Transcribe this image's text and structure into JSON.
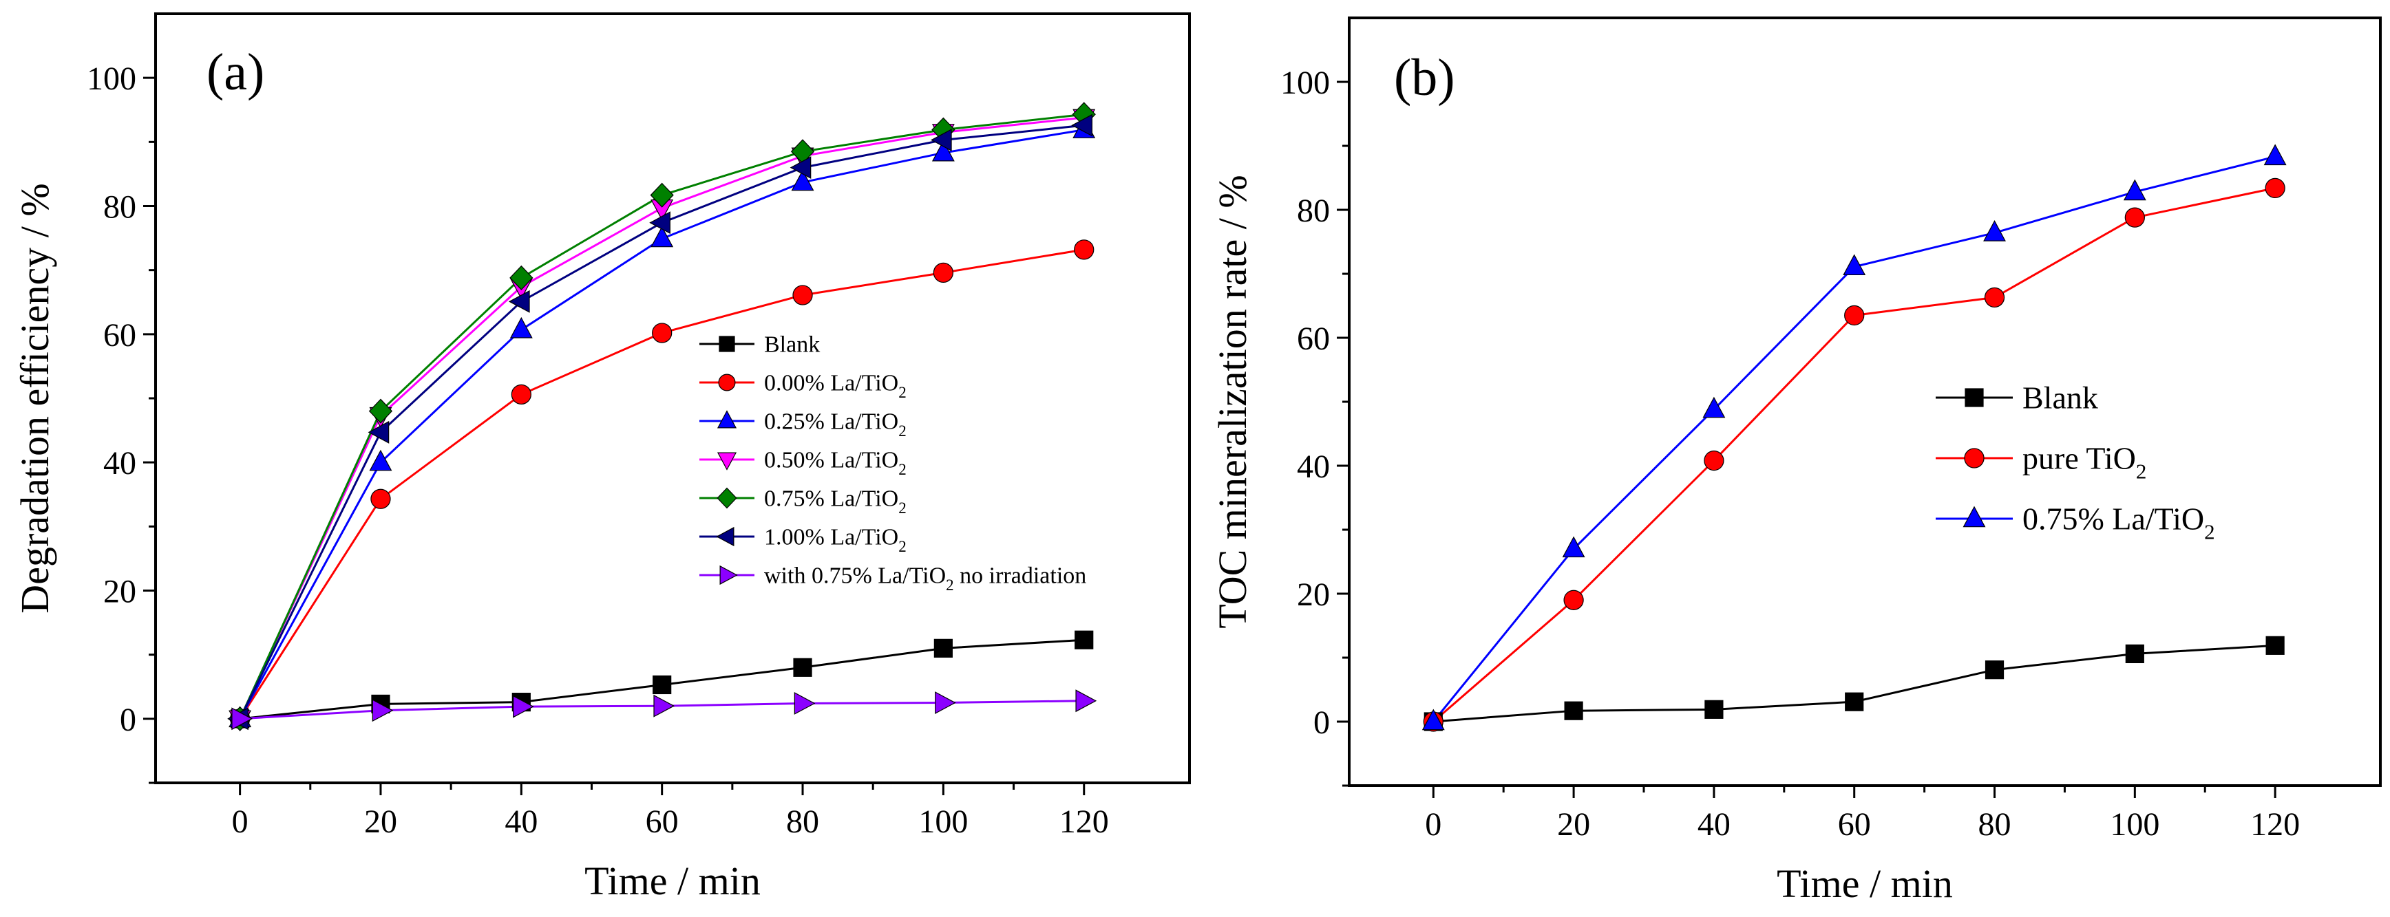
{
  "chart_data": [
    {
      "type": "line",
      "panel_label": "(a)",
      "xlabel": "Time / min",
      "ylabel": "Degradation efficiency / %",
      "xlim": [
        -12,
        135
      ],
      "ylim": [
        -10,
        110
      ],
      "xticks": [
        0,
        20,
        40,
        60,
        80,
        100,
        120
      ],
      "yticks": [
        0,
        20,
        40,
        60,
        80,
        100
      ],
      "x": [
        0,
        20,
        40,
        60,
        80,
        100,
        120
      ],
      "legend_position": "center-right",
      "series": [
        {
          "name": "Blank",
          "name_base": "Blank",
          "name_sub": "",
          "name_tail": "",
          "color": "#000000",
          "marker": "square",
          "values": [
            0,
            2.3,
            2.6,
            5.3,
            8.0,
            11.0,
            12.3
          ]
        },
        {
          "name": "0.00% La/TiO2",
          "name_base": "0.00% La/TiO",
          "name_sub": "2",
          "name_tail": "",
          "color": "#ff0000",
          "marker": "circle",
          "values": [
            0,
            34.3,
            50.6,
            60.2,
            66.1,
            69.6,
            73.2
          ]
        },
        {
          "name": "0.25% La/TiO2",
          "name_base": "0.25% La/TiO",
          "name_sub": "2",
          "name_tail": "",
          "color": "#0000ff",
          "marker": "triangle-up",
          "values": [
            0,
            40.0,
            60.7,
            74.9,
            83.7,
            88.3,
            91.9
          ]
        },
        {
          "name": "0.50% La/TiO2",
          "name_base": "0.50% La/TiO",
          "name_sub": "2",
          "name_tail": "",
          "color": "#ff00ff",
          "marker": "triangle-down",
          "values": [
            0,
            47.3,
            67.4,
            79.7,
            87.8,
            91.5,
            93.8
          ]
        },
        {
          "name": "0.75% La/TiO2",
          "name_base": "0.75% La/TiO",
          "name_sub": "2",
          "name_tail": "",
          "color": "#008000",
          "marker": "diamond",
          "values": [
            0,
            48.0,
            68.8,
            81.7,
            88.5,
            91.9,
            94.3
          ]
        },
        {
          "name": "1.00% La/TiO2",
          "name_base": "1.00% La/TiO",
          "name_sub": "2",
          "name_tail": "",
          "color": "#000080",
          "marker": "triangle-left",
          "values": [
            0,
            44.7,
            65.1,
            77.4,
            86.0,
            90.3,
            92.6
          ]
        },
        {
          "name": "with 0.75% La/TiO2 no irradiation",
          "name_base": "with 0.75% La/TiO",
          "name_sub": "2",
          "name_tail": " no irradiation",
          "color": "#8b00ff",
          "marker": "triangle-right",
          "values": [
            0,
            1.3,
            1.9,
            2.0,
            2.4,
            2.5,
            2.8
          ]
        }
      ]
    },
    {
      "type": "line",
      "panel_label": "(b)",
      "xlabel": "Time / min",
      "ylabel": "TOC mineralization rate / %",
      "xlim": [
        -12,
        135
      ],
      "ylim": [
        -10,
        110
      ],
      "xticks": [
        0,
        20,
        40,
        60,
        80,
        100,
        120
      ],
      "yticks": [
        0,
        20,
        40,
        60,
        80,
        100
      ],
      "x": [
        0,
        20,
        40,
        60,
        80,
        100,
        120
      ],
      "legend_position": "center-right",
      "series": [
        {
          "name": "Blank",
          "name_base": "Blank",
          "name_sub": "",
          "name_tail": "",
          "color": "#000000",
          "marker": "square",
          "values": [
            0,
            1.7,
            1.9,
            3.1,
            8.1,
            10.6,
            11.9
          ]
        },
        {
          "name": "pure TiO2",
          "name_base": "pure TiO",
          "name_sub": "2",
          "name_tail": "",
          "color": "#ff0000",
          "marker": "circle",
          "values": [
            0,
            19.0,
            40.8,
            63.5,
            66.3,
            78.8,
            83.4
          ]
        },
        {
          "name": "0.75% La/TiO2",
          "name_base": "0.75% La/TiO",
          "name_sub": "2",
          "name_tail": "",
          "color": "#0000ff",
          "marker": "triangle-up",
          "values": [
            0,
            27.0,
            48.8,
            71.1,
            76.4,
            82.8,
            88.3
          ]
        }
      ]
    }
  ]
}
